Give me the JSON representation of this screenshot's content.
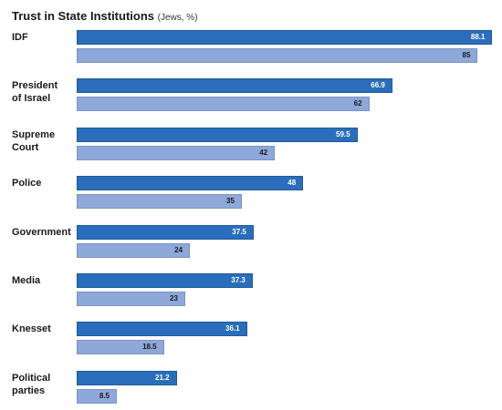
{
  "chart_data": {
    "type": "bar",
    "orientation": "horizontal",
    "title": "Trust in State Institutions",
    "subtitle": "(Jews, %)",
    "categories": [
      [
        "IDF"
      ],
      [
        "President",
        "of Israel"
      ],
      [
        "Supreme",
        "Court"
      ],
      [
        "Police"
      ],
      [
        "Government"
      ],
      [
        "Media"
      ],
      [
        "Knesset"
      ],
      [
        "Political",
        "parties"
      ]
    ],
    "series": [
      {
        "values": [
          88.1,
          66.9,
          59.5,
          48,
          37.5,
          37.3,
          36.1,
          21.2
        ],
        "color": "#2a6ebb"
      },
      {
        "values": [
          85,
          62,
          42,
          35,
          24,
          23,
          18.5,
          8.5
        ],
        "color": "#8ea8d9"
      }
    ],
    "xlim": [
      0,
      130
    ],
    "grid": false,
    "axes_visible": false
  }
}
